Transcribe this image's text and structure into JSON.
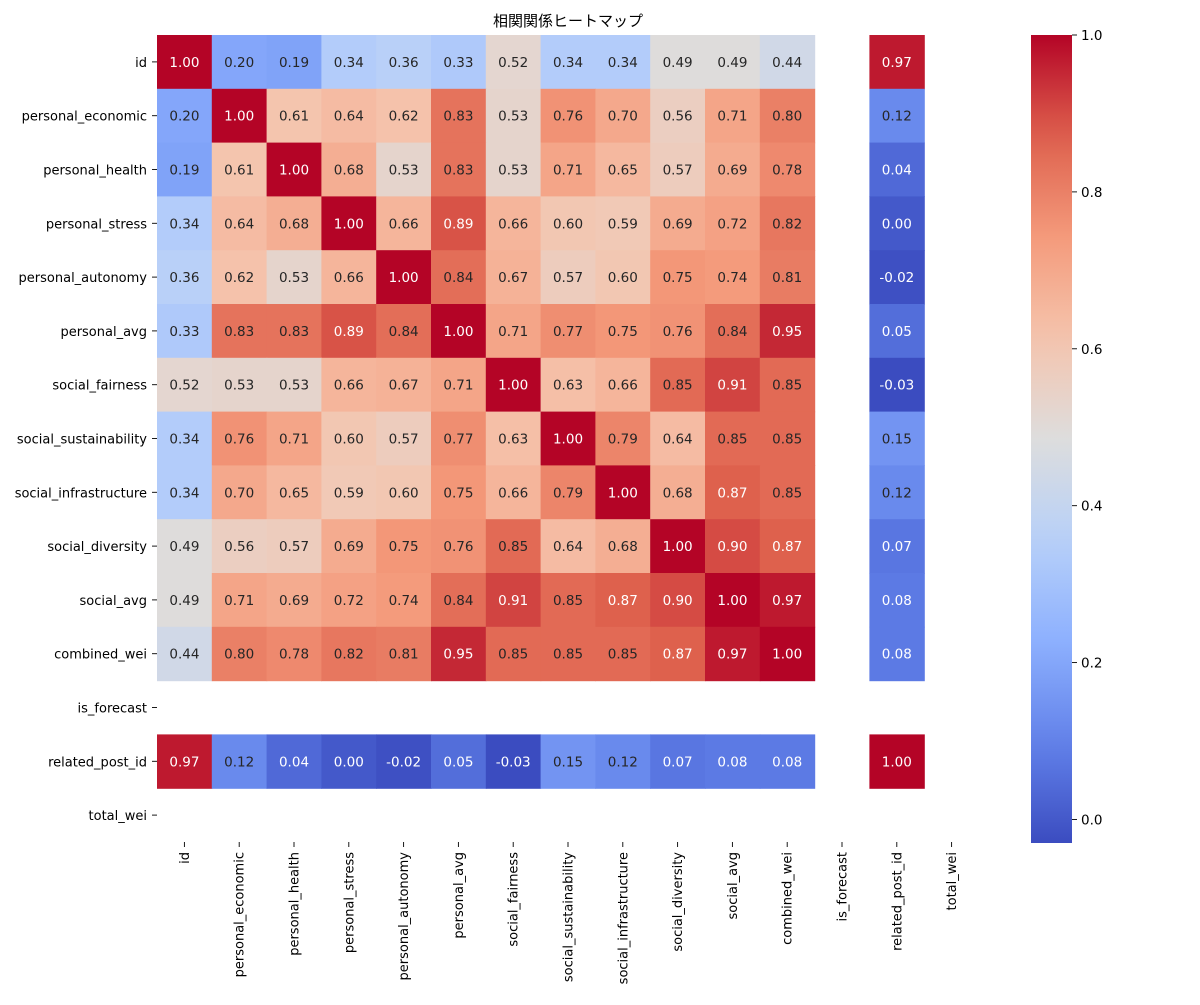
{
  "chart_data": {
    "type": "heatmap",
    "title": "相関関係ヒートマップ",
    "xlabel": "",
    "ylabel": "",
    "labels": [
      "id",
      "personal_economic",
      "personal_health",
      "personal_stress",
      "personal_autonomy",
      "personal_avg",
      "social_fairness",
      "social_sustainability",
      "social_infrastructure",
      "social_diversity",
      "social_avg",
      "combined_wei",
      "is_forecast",
      "related_post_id",
      "total_wei"
    ],
    "values": [
      [
        1.0,
        0.2,
        0.19,
        0.34,
        0.36,
        0.33,
        0.52,
        0.34,
        0.34,
        0.49,
        0.49,
        0.44,
        null,
        0.97,
        null
      ],
      [
        0.2,
        1.0,
        0.61,
        0.64,
        0.62,
        0.83,
        0.53,
        0.76,
        0.7,
        0.56,
        0.71,
        0.8,
        null,
        0.12,
        null
      ],
      [
        0.19,
        0.61,
        1.0,
        0.68,
        0.53,
        0.83,
        0.53,
        0.71,
        0.65,
        0.57,
        0.69,
        0.78,
        null,
        0.04,
        null
      ],
      [
        0.34,
        0.64,
        0.68,
        1.0,
        0.66,
        0.89,
        0.66,
        0.6,
        0.59,
        0.69,
        0.72,
        0.82,
        null,
        0.0,
        null
      ],
      [
        0.36,
        0.62,
        0.53,
        0.66,
        1.0,
        0.84,
        0.67,
        0.57,
        0.6,
        0.75,
        0.74,
        0.81,
        null,
        -0.02,
        null
      ],
      [
        0.33,
        0.83,
        0.83,
        0.89,
        0.84,
        1.0,
        0.71,
        0.77,
        0.75,
        0.76,
        0.84,
        0.95,
        null,
        0.05,
        null
      ],
      [
        0.52,
        0.53,
        0.53,
        0.66,
        0.67,
        0.71,
        1.0,
        0.63,
        0.66,
        0.85,
        0.91,
        0.85,
        null,
        -0.03,
        null
      ],
      [
        0.34,
        0.76,
        0.71,
        0.6,
        0.57,
        0.77,
        0.63,
        1.0,
        0.79,
        0.64,
        0.85,
        0.85,
        null,
        0.15,
        null
      ],
      [
        0.34,
        0.7,
        0.65,
        0.59,
        0.6,
        0.75,
        0.66,
        0.79,
        1.0,
        0.68,
        0.87,
        0.85,
        null,
        0.12,
        null
      ],
      [
        0.49,
        0.56,
        0.57,
        0.69,
        0.75,
        0.76,
        0.85,
        0.64,
        0.68,
        1.0,
        0.9,
        0.87,
        null,
        0.07,
        null
      ],
      [
        0.49,
        0.71,
        0.69,
        0.72,
        0.74,
        0.84,
        0.91,
        0.85,
        0.87,
        0.9,
        1.0,
        0.97,
        null,
        0.08,
        null
      ],
      [
        0.44,
        0.8,
        0.78,
        0.82,
        0.81,
        0.95,
        0.85,
        0.85,
        0.85,
        0.87,
        0.97,
        1.0,
        null,
        0.08,
        null
      ],
      [
        null,
        null,
        null,
        null,
        null,
        null,
        null,
        null,
        null,
        null,
        null,
        null,
        null,
        null,
        null
      ],
      [
        0.97,
        0.12,
        0.04,
        0.0,
        -0.02,
        0.05,
        -0.03,
        0.15,
        0.12,
        0.07,
        0.08,
        0.08,
        null,
        1.0,
        null
      ],
      [
        null,
        null,
        null,
        null,
        null,
        null,
        null,
        null,
        null,
        null,
        null,
        null,
        null,
        null,
        null
      ]
    ],
    "value_format": "0.00",
    "colormap": "coolwarm",
    "vmin": -0.03,
    "vmax": 1.0,
    "colorbar": {
      "ticks": [
        0.0,
        0.2,
        0.4,
        0.6,
        0.8,
        1.0
      ],
      "tick_labels": [
        "0.0",
        "0.2",
        "0.4",
        "0.6",
        "0.8",
        "1.0"
      ]
    },
    "grid": false,
    "legend": "none"
  }
}
